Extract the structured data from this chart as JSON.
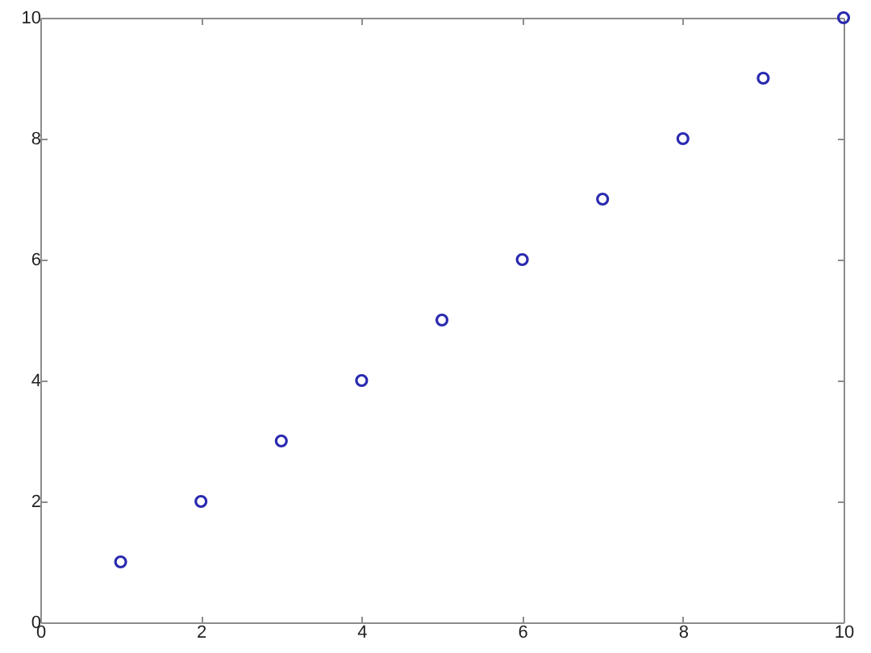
{
  "chart_data": {
    "type": "scatter",
    "x": [
      1,
      2,
      3,
      4,
      5,
      6,
      7,
      8,
      9,
      10
    ],
    "values": [
      1,
      2,
      3,
      4,
      5,
      6,
      7,
      8,
      9,
      10
    ],
    "color": "#2a2ab0",
    "marker": "circle",
    "xlim": [
      0,
      10
    ],
    "ylim": [
      0,
      10
    ],
    "xticks": [
      0,
      2,
      4,
      6,
      8,
      10
    ],
    "yticks": [
      0,
      2,
      4,
      6,
      8,
      10
    ],
    "grid": false
  }
}
